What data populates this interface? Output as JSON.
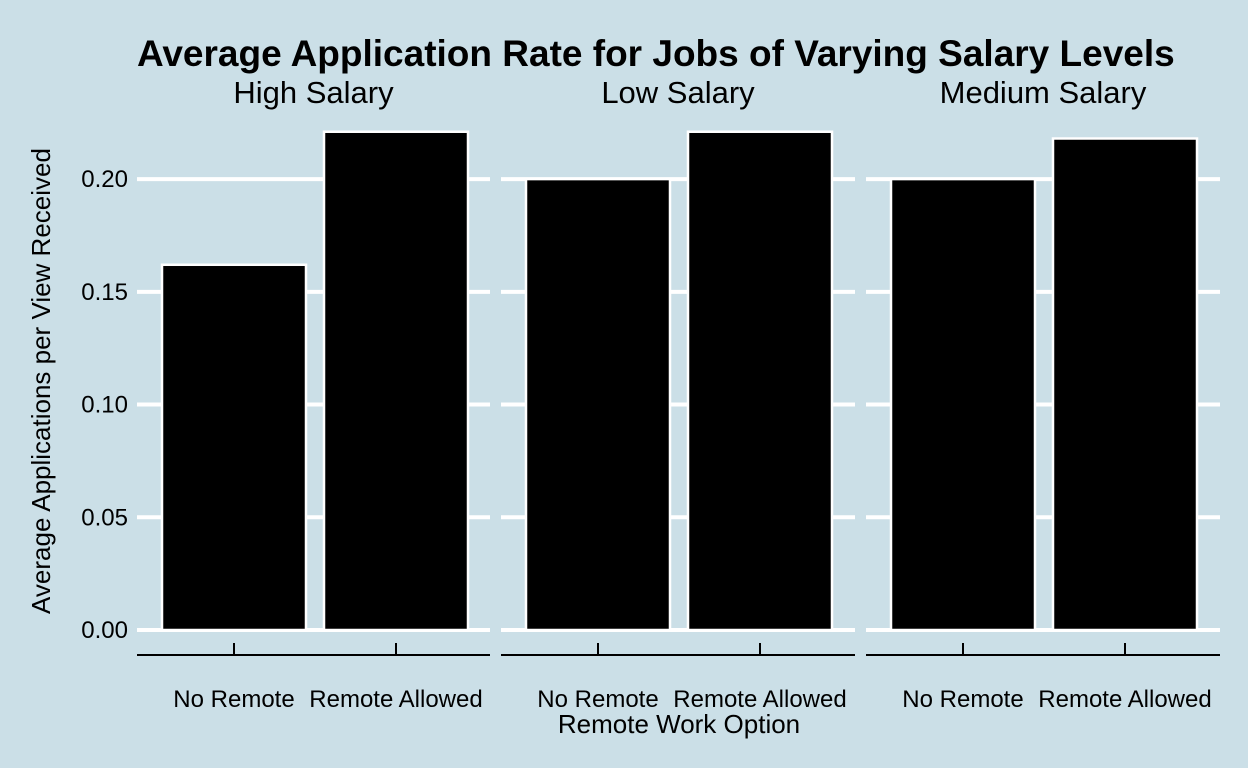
{
  "chart_data": {
    "type": "bar",
    "title": "Average Application Rate for Jobs of Varying Salary Levels",
    "xlabel": "Remote Work Option",
    "ylabel": "Average Applications per View Received",
    "ylim": [
      0,
      0.225
    ],
    "yticks": [
      "0.00",
      "0.05",
      "0.10",
      "0.15",
      "0.20"
    ],
    "ytick_values": [
      0,
      0.05,
      0.1,
      0.15,
      0.2
    ],
    "categories": [
      "No Remote",
      "Remote Allowed"
    ],
    "grid": true,
    "legend": "none",
    "colors": {
      "background": "#cbdfe7",
      "bar": "#000000",
      "bar_outline": "#ffffff",
      "grid": "#ffffff"
    },
    "facets": [
      {
        "name": "High Salary",
        "values": [
          0.162,
          0.221
        ]
      },
      {
        "name": "Low Salary",
        "values": [
          0.2,
          0.221
        ]
      },
      {
        "name": "Medium Salary",
        "values": [
          0.2,
          0.218
        ]
      }
    ]
  }
}
